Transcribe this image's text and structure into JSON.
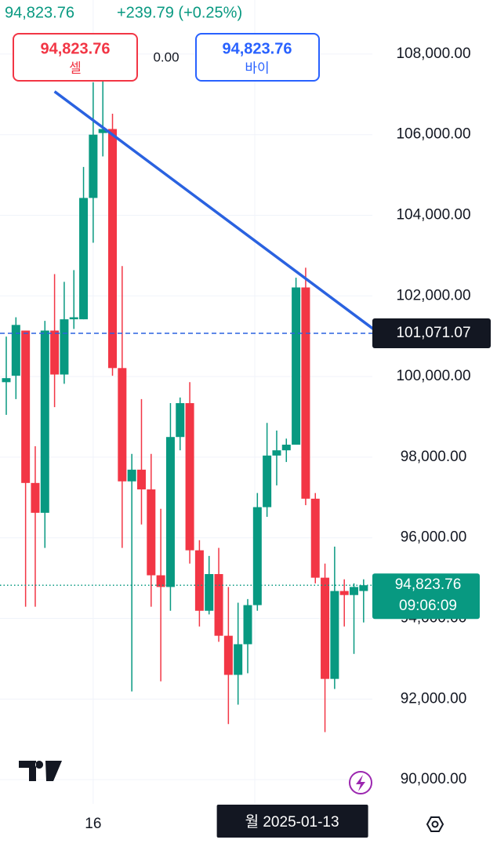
{
  "chart_data": {
    "type": "candlestick",
    "header_price": "94,823.76",
    "change": "+239.79 (+0.25%)",
    "sell": {
      "price": "94,823.76",
      "label": "셀"
    },
    "spread": "0.00",
    "buy": {
      "price": "94,823.76",
      "label": "바이"
    },
    "categories": [
      null,
      null,
      null,
      null,
      null,
      null,
      null,
      null,
      null,
      "16",
      null,
      null,
      null,
      null,
      null,
      null,
      null,
      null,
      null,
      null,
      null,
      null,
      null,
      null,
      null,
      null,
      null,
      null,
      null,
      null,
      null,
      null,
      null,
      null,
      null,
      null,
      null,
      null
    ],
    "open": [
      99860,
      100020,
      101140,
      97360,
      96620,
      101140,
      100050,
      101420,
      101420,
      104430,
      106040,
      106140,
      100210,
      97400,
      97690,
      97200,
      95070,
      94780,
      98500,
      99340,
      95690,
      94190,
      95100,
      93570,
      92600,
      93360,
      94330,
      96760,
      98040,
      98170,
      98310,
      102210,
      96970,
      95010,
      92500,
      94680,
      94580,
      94680
    ],
    "high": [
      100990,
      101470,
      101140,
      98270,
      101380,
      102540,
      102350,
      102640,
      105200,
      107300,
      107500,
      106520,
      102740,
      98080,
      99440,
      98080,
      96720,
      99340,
      99480,
      99860,
      95940,
      95550,
      95750,
      94780,
      94390,
      94480,
      97110,
      98850,
      98660,
      98460,
      102450,
      102700,
      97110,
      95360,
      95780,
      94970,
      94870,
      94970
    ],
    "low": [
      99050,
      99440,
      94290,
      94290,
      95750,
      99240,
      99820,
      101180,
      101420,
      103320,
      105460,
      100020,
      95750,
      92190,
      96330,
      94290,
      92440,
      94190,
      98170,
      95360,
      93800,
      94100,
      93420,
      91380,
      91860,
      92640,
      94190,
      96520,
      97300,
      97880,
      98310,
      96810,
      94870,
      91180,
      92250,
      93800,
      93120,
      93900
    ],
    "close": [
      99960,
      101280,
      97360,
      96620,
      101140,
      100050,
      101420,
      101470,
      104430,
      106000,
      106140,
      100210,
      97400,
      97690,
      97200,
      95070,
      94780,
      98500,
      99340,
      95690,
      94190,
      95100,
      93570,
      92600,
      93360,
      94330,
      96760,
      98040,
      98170,
      98310,
      102210,
      96970,
      95010,
      92500,
      94680,
      94580,
      94780,
      94823.76
    ],
    "up_color": "#089981",
    "down_color": "#f23645",
    "ylim": [
      89400,
      109340
    ],
    "yticks": [
      {
        "value": 90000,
        "label": "90,000.00"
      },
      {
        "value": 92000,
        "label": "92,000.00"
      },
      {
        "value": 94000,
        "label": "94,000.00"
      },
      {
        "value": 96000,
        "label": "96,000.00"
      },
      {
        "value": 98000,
        "label": "98,000.00"
      },
      {
        "value": 100000,
        "label": "100,000.00"
      },
      {
        "value": 102000,
        "label": "102,000.00"
      },
      {
        "value": 104000,
        "label": "104,000.00"
      },
      {
        "value": 106000,
        "label": "106,000.00"
      },
      {
        "value": 108000,
        "label": "108,000.00"
      }
    ],
    "grid": true,
    "trendline": {
      "x": [
        5,
        38
      ],
      "values": [
        107070,
        101180
      ],
      "color": "#2a62e0"
    },
    "crosshair": {
      "value": 101071.07,
      "label": "101,071.07",
      "x_index": 30,
      "x_label": "월 2025-01-13",
      "color": "#2a62e0"
    },
    "last_price": {
      "value": 94823.76,
      "label": "94,823.76",
      "countdown": "09:06:09",
      "color": "#089981"
    }
  }
}
